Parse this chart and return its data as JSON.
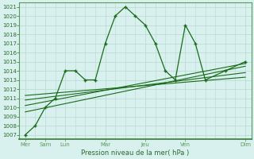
{
  "bg_color": "#d8f0ee",
  "plot_bg_color": "#d8f0ee",
  "grid_color": "#b8d8d0",
  "line_color": "#1a6b1a",
  "text_color": "#2a6b2a",
  "spine_color": "#5a9a5a",
  "ylabel_text": "Pression niveau de la mer( hPa )",
  "yticks": [
    1007,
    1008,
    1009,
    1010,
    1011,
    1012,
    1013,
    1014,
    1015,
    1016,
    1017,
    1018,
    1019,
    1020,
    1021
  ],
  "ylim": [
    1006.5,
    1021.5
  ],
  "xtick_major": [
    0,
    1,
    2,
    4,
    6,
    8,
    11
  ],
  "xtick_major_labels": [
    "Mer",
    "Sam",
    "Lun",
    "Mar",
    "Jeu",
    "Ven",
    "Dim"
  ],
  "main_line_x": [
    0,
    0.5,
    1,
    1.5,
    2,
    2.5,
    3,
    3.5,
    4,
    4.5,
    5,
    5.5,
    6,
    6.5,
    7,
    7.5,
    8,
    8.5,
    9,
    10,
    11
  ],
  "main_line_y": [
    1007,
    1008,
    1010,
    1011,
    1014,
    1014,
    1013,
    1013,
    1017,
    1020,
    1021,
    1020,
    1019,
    1017,
    1014,
    1013,
    1019,
    1017,
    1013,
    1014,
    1015
  ],
  "trend1_x": [
    0,
    11
  ],
  "trend1_y": [
    1009.5,
    1014.5
  ],
  "trend2_x": [
    0,
    11
  ],
  "trend2_y": [
    1010.2,
    1014.8
  ],
  "trend3_x": [
    0,
    11
  ],
  "trend3_y": [
    1010.8,
    1013.8
  ],
  "trend4_x": [
    0,
    11
  ],
  "trend4_y": [
    1011.3,
    1013.3
  ]
}
